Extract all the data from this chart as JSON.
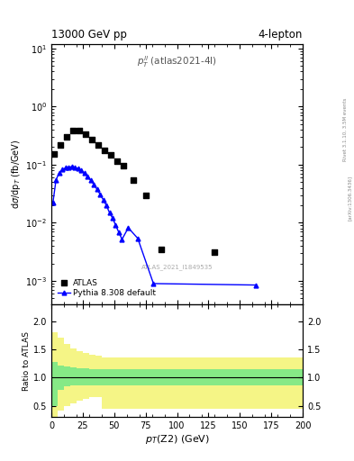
{
  "title_left": "13000 GeV pp",
  "title_right": "4-lepton",
  "plot_label": "$p_T^{ll}$ (atlas2021-4l)",
  "watermark": "ATLAS_2021_I1849535",
  "right_label": "Rivet 3.1.10, 3.5M events",
  "arxiv_label": "[arXiv:1306.3436]",
  "xlabel": "$p_T$(Z2) (GeV)",
  "ylabel": "d$\\sigma$/dp$_T$ (fb/GeV)",
  "xmin": 0,
  "xmax": 200,
  "ymin": 0.0004,
  "ymax": 12,
  "ratio_ymin": 0.3,
  "ratio_ymax": 2.3,
  "ratio_yticks": [
    0.5,
    1.0,
    1.5,
    2.0
  ],
  "atlas_x": [
    2.5,
    7.5,
    12.5,
    17.5,
    22.5,
    27.5,
    32.5,
    37.5,
    42.5,
    47.5,
    52.5,
    57.5,
    65.0,
    75.0,
    87.5,
    130.0
  ],
  "atlas_y": [
    0.155,
    0.22,
    0.3,
    0.38,
    0.38,
    0.33,
    0.27,
    0.22,
    0.175,
    0.145,
    0.115,
    0.095,
    0.055,
    0.03,
    0.0035,
    0.0031
  ],
  "pythia_x": [
    1.25,
    3.75,
    6.25,
    8.75,
    11.25,
    13.75,
    16.25,
    18.75,
    21.25,
    23.75,
    26.25,
    28.75,
    31.25,
    33.75,
    36.25,
    38.75,
    41.25,
    43.75,
    46.25,
    48.75,
    51.25,
    53.75,
    56.25,
    61.25,
    68.75,
    81.25,
    162.5
  ],
  "pythia_y": [
    0.022,
    0.055,
    0.072,
    0.082,
    0.088,
    0.091,
    0.092,
    0.09,
    0.086,
    0.079,
    0.071,
    0.063,
    0.054,
    0.046,
    0.038,
    0.031,
    0.025,
    0.02,
    0.015,
    0.012,
    0.009,
    0.0068,
    0.0052,
    0.0082,
    0.0054,
    0.0009,
    0.00085
  ],
  "ratio_bin_edges": [
    0,
    5,
    10,
    15,
    20,
    25,
    30,
    35,
    40,
    45,
    50,
    55,
    60,
    65,
    70,
    200
  ],
  "ratio_green_low": [
    0.5,
    0.78,
    0.84,
    0.86,
    0.87,
    0.87,
    0.87,
    0.87,
    0.87,
    0.87,
    0.87,
    0.87,
    0.87,
    0.87,
    0.87
  ],
  "ratio_green_high": [
    1.28,
    1.22,
    1.2,
    1.18,
    1.17,
    1.16,
    1.15,
    1.15,
    1.15,
    1.15,
    1.15,
    1.15,
    1.15,
    1.15,
    1.15
  ],
  "ratio_yellow_low": [
    0.15,
    0.42,
    0.5,
    0.55,
    0.6,
    0.63,
    0.65,
    0.65,
    0.45,
    0.45,
    0.45,
    0.45,
    0.45,
    0.45,
    0.45
  ],
  "ratio_yellow_high": [
    1.8,
    1.7,
    1.6,
    1.52,
    1.47,
    1.43,
    1.4,
    1.38,
    1.36,
    1.36,
    1.36,
    1.36,
    1.36,
    1.36,
    1.36
  ],
  "atlas_color": "black",
  "pythia_color": "blue",
  "green_color": "#86e986",
  "yellow_color": "#f5f586",
  "background_color": "white"
}
